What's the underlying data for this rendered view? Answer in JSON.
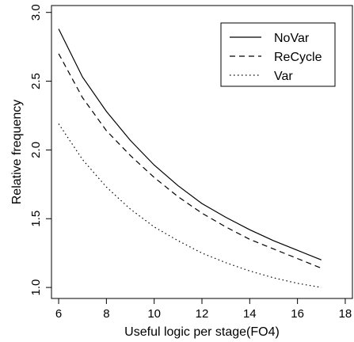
{
  "chart_data": {
    "type": "line",
    "title": "",
    "xlabel": "Useful logic per stage(FO4)",
    "ylabel": "Relative frequency",
    "xlim": [
      5.7,
      18.3
    ],
    "ylim": [
      0.92,
      3.05
    ],
    "x_ticks": [
      6,
      8,
      10,
      12,
      14,
      16,
      18
    ],
    "y_ticks": [
      1.0,
      1.5,
      2.0,
      2.5,
      3.0
    ],
    "x_tick_labels": [
      "6",
      "8",
      "10",
      "12",
      "14",
      "16",
      "18"
    ],
    "y_tick_labels": [
      "1.0",
      "1.5",
      "2.0",
      "2.5",
      "3.0"
    ],
    "grid": false,
    "legend_position": "top-right",
    "x": [
      6,
      7,
      8,
      9,
      10,
      11,
      12,
      13,
      14,
      15,
      16,
      17
    ],
    "series": [
      {
        "name": "NoVar",
        "style": "solid",
        "values": [
          2.88,
          2.53,
          2.28,
          2.07,
          1.89,
          1.74,
          1.61,
          1.51,
          1.42,
          1.34,
          1.27,
          1.2
        ]
      },
      {
        "name": "ReCycle",
        "style": "dashed",
        "values": [
          2.7,
          2.38,
          2.14,
          1.96,
          1.8,
          1.66,
          1.54,
          1.44,
          1.35,
          1.28,
          1.21,
          1.14
        ]
      },
      {
        "name": "Var",
        "style": "dotted",
        "values": [
          2.19,
          1.93,
          1.73,
          1.57,
          1.44,
          1.34,
          1.25,
          1.18,
          1.12,
          1.07,
          1.03,
          1.0
        ]
      }
    ]
  }
}
